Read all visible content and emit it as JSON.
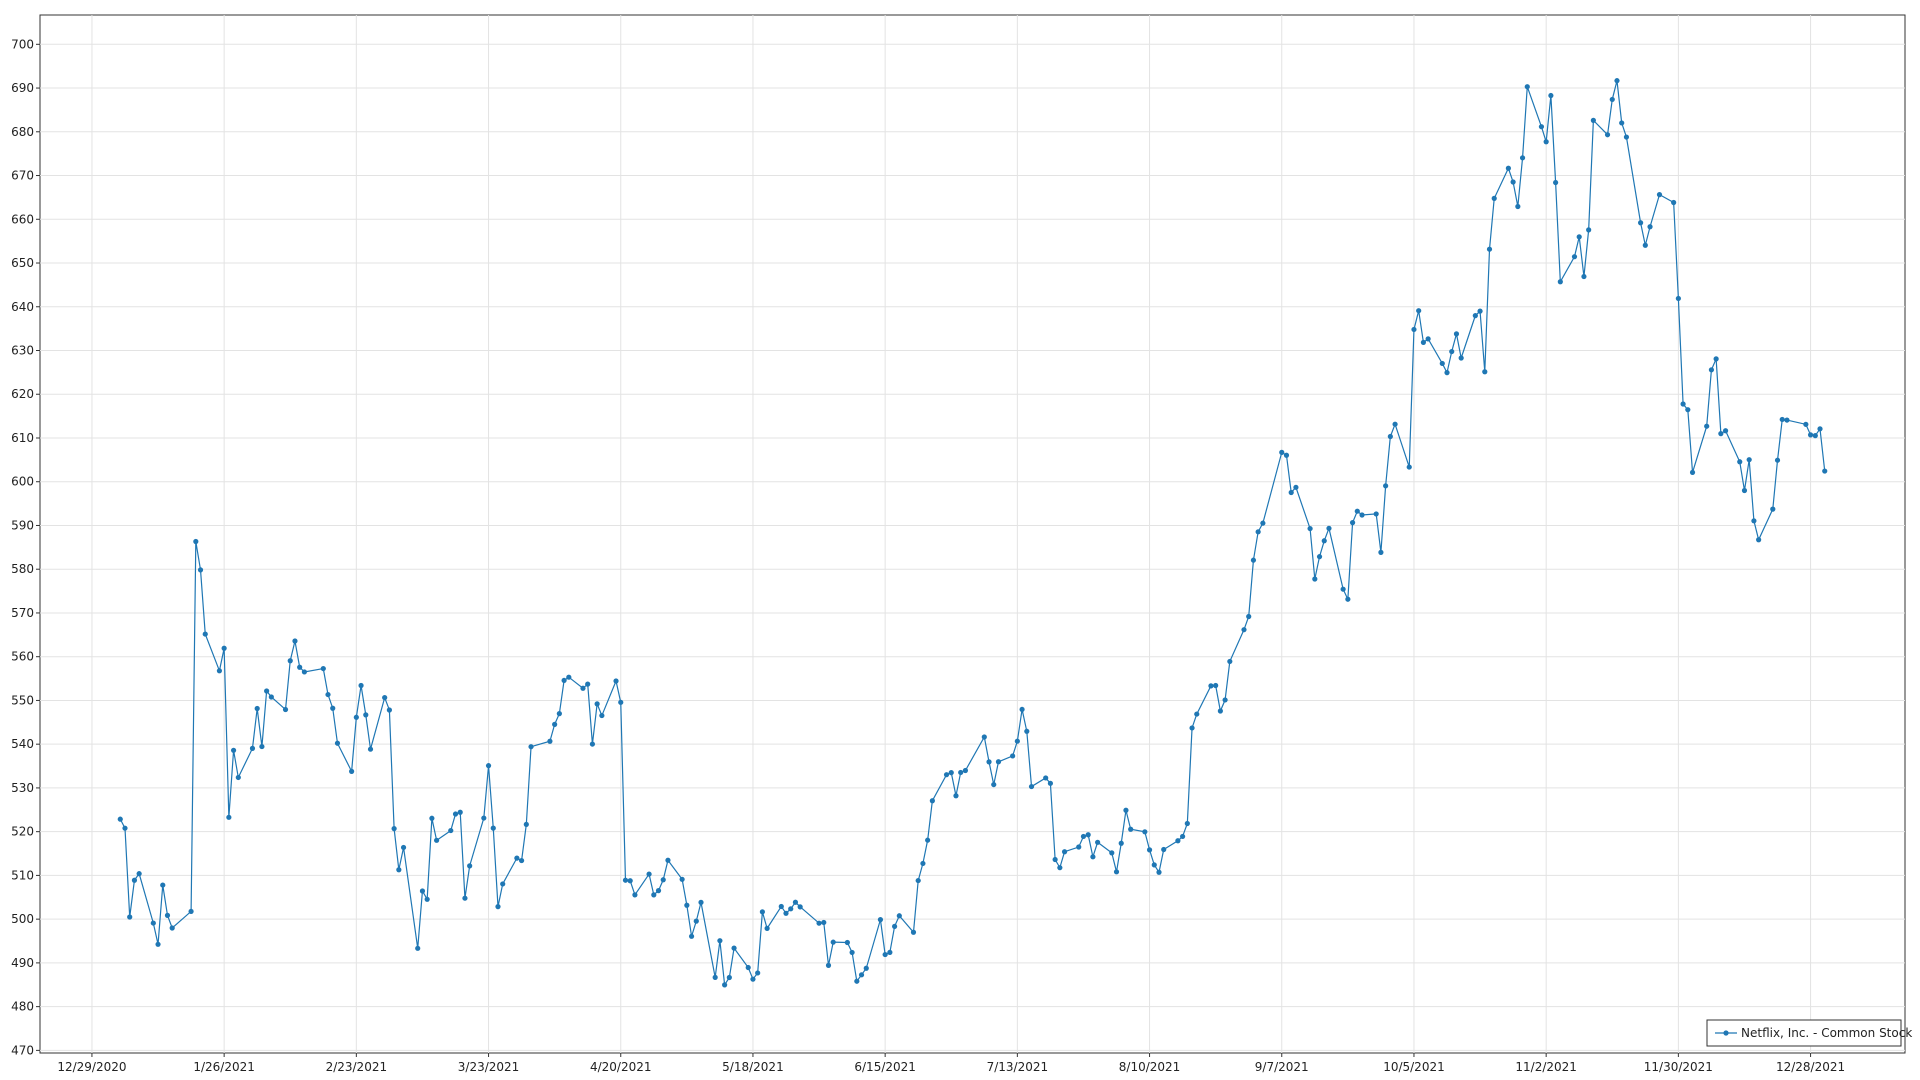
{
  "chart_data": {
    "type": "line",
    "grid": true,
    "legend": "lower right",
    "xlim": [
      "12/18/2020",
      "1/17/2022"
    ],
    "xticks": [
      "12/29/2020",
      "1/26/2021",
      "2/23/2021",
      "3/23/2021",
      "4/20/2021",
      "5/18/2021",
      "6/15/2021",
      "7/13/2021",
      "8/10/2021",
      "9/7/2021",
      "10/5/2021",
      "11/2/2021",
      "11/30/2021",
      "12/28/2021"
    ],
    "ylim": [
      469.4,
      706.7
    ],
    "yticks": [
      470,
      480,
      490,
      500,
      510,
      520,
      530,
      540,
      550,
      560,
      570,
      580,
      590,
      600,
      610,
      620,
      630,
      640,
      650,
      660,
      670,
      680,
      690,
      700
    ],
    "x": [
      "1/4/2021",
      "1/5/2021",
      "1/6/2021",
      "1/7/2021",
      "1/8/2021",
      "1/11/2021",
      "1/12/2021",
      "1/13/2021",
      "1/14/2021",
      "1/15/2021",
      "1/19/2021",
      "1/20/2021",
      "1/21/2021",
      "1/22/2021",
      "1/25/2021",
      "1/26/2021",
      "1/27/2021",
      "1/28/2021",
      "1/29/2021",
      "2/1/2021",
      "2/2/2021",
      "2/3/2021",
      "2/4/2021",
      "2/5/2021",
      "2/8/2021",
      "2/9/2021",
      "2/10/2021",
      "2/11/2021",
      "2/12/2021",
      "2/16/2021",
      "2/17/2021",
      "2/18/2021",
      "2/19/2021",
      "2/22/2021",
      "2/23/2021",
      "2/24/2021",
      "2/25/2021",
      "2/26/2021",
      "3/1/2021",
      "3/2/2021",
      "3/3/2021",
      "3/4/2021",
      "3/5/2021",
      "3/8/2021",
      "3/9/2021",
      "3/10/2021",
      "3/11/2021",
      "3/12/2021",
      "3/15/2021",
      "3/16/2021",
      "3/17/2021",
      "3/18/2021",
      "3/19/2021",
      "3/22/2021",
      "3/23/2021",
      "3/24/2021",
      "3/25/2021",
      "3/26/2021",
      "3/29/2021",
      "3/30/2021",
      "3/31/2021",
      "4/1/2021",
      "4/5/2021",
      "4/6/2021",
      "4/7/2021",
      "4/8/2021",
      "4/9/2021",
      "4/12/2021",
      "4/13/2021",
      "4/14/2021",
      "4/15/2021",
      "4/16/2021",
      "4/19/2021",
      "4/20/2021",
      "4/21/2021",
      "4/22/2021",
      "4/23/2021",
      "4/26/2021",
      "4/27/2021",
      "4/28/2021",
      "4/29/2021",
      "4/30/2021",
      "5/3/2021",
      "5/4/2021",
      "5/5/2021",
      "5/6/2021",
      "5/7/2021",
      "5/10/2021",
      "5/11/2021",
      "5/12/2021",
      "5/13/2021",
      "5/14/2021",
      "5/17/2021",
      "5/18/2021",
      "5/19/2021",
      "5/20/2021",
      "5/21/2021",
      "5/24/2021",
      "5/25/2021",
      "5/26/2021",
      "5/27/2021",
      "5/28/2021",
      "6/1/2021",
      "6/2/2021",
      "6/3/2021",
      "6/4/2021",
      "6/7/2021",
      "6/8/2021",
      "6/9/2021",
      "6/10/2021",
      "6/11/2021",
      "6/14/2021",
      "6/15/2021",
      "6/16/2021",
      "6/17/2021",
      "6/18/2021",
      "6/21/2021",
      "6/22/2021",
      "6/23/2021",
      "6/24/2021",
      "6/25/2021",
      "6/28/2021",
      "6/29/2021",
      "6/30/2021",
      "7/1/2021",
      "7/2/2021",
      "7/6/2021",
      "7/7/2021",
      "7/8/2021",
      "7/9/2021",
      "7/12/2021",
      "7/13/2021",
      "7/14/2021",
      "7/15/2021",
      "7/16/2021",
      "7/19/2021",
      "7/20/2021",
      "7/21/2021",
      "7/22/2021",
      "7/23/2021",
      "7/26/2021",
      "7/27/2021",
      "7/28/2021",
      "7/29/2021",
      "7/30/2021",
      "8/2/2021",
      "8/3/2021",
      "8/4/2021",
      "8/5/2021",
      "8/6/2021",
      "8/9/2021",
      "8/10/2021",
      "8/11/2021",
      "8/12/2021",
      "8/13/2021",
      "8/16/2021",
      "8/17/2021",
      "8/18/2021",
      "8/19/2021",
      "8/20/2021",
      "8/23/2021",
      "8/24/2021",
      "8/25/2021",
      "8/26/2021",
      "8/27/2021",
      "8/30/2021",
      "8/31/2021",
      "9/1/2021",
      "9/2/2021",
      "9/3/2021",
      "9/7/2021",
      "9/8/2021",
      "9/9/2021",
      "9/10/2021",
      "9/13/2021",
      "9/14/2021",
      "9/15/2021",
      "9/16/2021",
      "9/17/2021",
      "9/20/2021",
      "9/21/2021",
      "9/22/2021",
      "9/23/2021",
      "9/24/2021",
      "9/27/2021",
      "9/28/2021",
      "9/29/2021",
      "9/30/2021",
      "10/1/2021",
      "10/4/2021",
      "10/5/2021",
      "10/6/2021",
      "10/7/2021",
      "10/8/2021",
      "10/11/2021",
      "10/12/2021",
      "10/13/2021",
      "10/14/2021",
      "10/15/2021",
      "10/18/2021",
      "10/19/2021",
      "10/20/2021",
      "10/21/2021",
      "10/22/2021",
      "10/25/2021",
      "10/26/2021",
      "10/27/2021",
      "10/28/2021",
      "10/29/2021",
      "11/1/2021",
      "11/2/2021",
      "11/3/2021",
      "11/4/2021",
      "11/5/2021",
      "11/8/2021",
      "11/9/2021",
      "11/10/2021",
      "11/11/2021",
      "11/12/2021",
      "11/15/2021",
      "11/16/2021",
      "11/17/2021",
      "11/18/2021",
      "11/19/2021",
      "11/22/2021",
      "11/23/2021",
      "11/24/2021",
      "11/26/2021",
      "11/29/2021",
      "11/30/2021",
      "12/1/2021",
      "12/2/2021",
      "12/3/2021",
      "12/6/2021",
      "12/7/2021",
      "12/8/2021",
      "12/9/2021",
      "12/10/2021",
      "12/13/2021",
      "12/14/2021",
      "12/15/2021",
      "12/16/2021",
      "12/17/2021",
      "12/20/2021",
      "12/21/2021",
      "12/22/2021",
      "12/23/2021",
      "12/27/2021",
      "12/28/2021",
      "12/29/2021",
      "12/30/2021",
      "12/31/2021"
    ],
    "series": [
      {
        "name": "Netflix, Inc. - Common Stock",
        "color": "#1f77b4",
        "values": [
          522.86,
          520.8,
          500.49,
          508.89,
          510.4,
          499.1,
          494.25,
          507.79,
          500.86,
          497.98,
          501.77,
          586.34,
          579.84,
          565.17,
          556.78,
          561.93,
          523.28,
          538.6,
          532.39,
          539.04,
          548.16,
          539.45,
          552.16,
          550.79,
          547.92,
          559.07,
          563.59,
          557.59,
          556.52,
          557.28,
          551.34,
          548.22,
          540.22,
          533.78,
          546.15,
          553.41,
          546.7,
          538.85,
          550.64,
          547.82,
          520.7,
          511.29,
          516.39,
          493.33,
          506.44,
          504.54,
          523.06,
          518.02,
          520.25,
          524.03,
          524.44,
          504.79,
          512.18,
          523.11,
          535.09,
          520.81,
          502.86,
          508.05,
          513.95,
          513.39,
          521.66,
          539.42,
          540.67,
          544.53,
          546.99,
          554.58,
          555.31,
          552.78,
          553.73,
          540.02,
          549.22,
          546.54,
          554.44,
          549.57,
          508.9,
          508.78,
          505.55,
          510.3,
          505.55,
          506.52,
          509.0,
          513.47,
          509.11,
          503.18,
          496.08,
          499.55,
          503.84,
          486.69,
          495.08,
          484.98,
          486.66,
          493.37,
          488.94,
          486.28,
          487.7,
          501.67,
          497.89,
          502.9,
          501.34,
          502.36,
          503.86,
          502.81,
          499.08,
          499.24,
          489.43,
          494.74,
          494.66,
          492.39,
          485.81,
          487.27,
          488.77,
          499.89,
          491.9,
          492.41,
          498.34,
          500.77,
          497.0,
          508.82,
          512.74,
          518.06,
          527.07,
          533.03,
          533.5,
          528.21,
          533.54,
          533.98,
          541.64,
          535.96,
          530.76,
          535.98,
          537.31,
          540.68,
          547.95,
          542.95,
          530.31,
          532.28,
          531.05,
          513.63,
          511.77,
          515.41,
          516.49,
          518.91,
          519.3,
          514.25,
          517.57,
          515.15,
          510.82,
          517.35,
          524.89,
          520.55,
          519.97,
          515.84,
          512.4,
          510.72,
          515.92,
          517.92,
          518.91,
          521.87,
          543.71,
          546.88,
          553.33,
          553.41,
          547.58,
          550.12,
          558.92,
          566.18,
          569.19,
          582.07,
          588.55,
          590.53,
          606.71,
          606.05,
          597.54,
          598.72,
          589.29,
          577.76,
          582.87,
          586.5,
          589.35,
          575.43,
          573.14,
          590.65,
          593.26,
          592.39,
          592.64,
          583.85,
          599.06,
          610.34,
          613.15,
          603.35,
          634.81,
          639.1,
          631.85,
          632.66,
          627.04,
          624.94,
          629.76,
          633.8,
          628.29,
          637.97,
          639.0,
          625.14,
          653.16,
          664.78,
          671.66,
          668.52,
          662.92,
          674.05,
          690.31,
          681.17,
          677.72,
          688.29,
          668.4,
          645.72,
          651.45,
          655.99,
          646.91,
          657.58,
          682.61,
          679.33,
          687.4,
          691.69,
          682.02,
          678.8,
          659.2,
          654.06,
          658.29,
          665.64,
          663.84,
          641.9,
          617.77,
          616.47,
          602.13,
          612.69,
          625.58,
          628.08,
          611.0,
          611.66,
          604.56,
          597.99,
          605.04,
          591.06,
          586.73,
          593.74,
          604.92,
          614.24,
          614.09,
          613.12,
          610.71,
          610.54,
          612.09,
          602.44
        ]
      }
    ]
  }
}
